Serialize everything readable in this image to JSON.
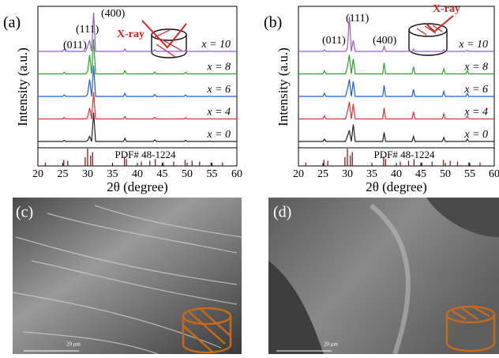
{
  "chart_data": [
    {
      "type": "line",
      "panel_label": "(a)",
      "xlabel": "2θ (degree)",
      "ylabel": "Intensity (a.u.)",
      "xlim": [
        20,
        60
      ],
      "xticks": [
        20,
        25,
        30,
        35,
        40,
        45,
        50,
        55,
        60
      ],
      "x": [
        20,
        25.0,
        25.3,
        25.6,
        29.6,
        30.0,
        30.4,
        30.8,
        31.2,
        31.6,
        37.2,
        37.5,
        37.8,
        43.2,
        43.5,
        43.8,
        49.4,
        49.7,
        50.0,
        54.2,
        54.5,
        54.8,
        60
      ],
      "series": [
        {
          "name": "x = 10",
          "color": "#9b59d0",
          "values": [
            0.02,
            0.02,
            0.08,
            0.02,
            0.02,
            0.15,
            0.3,
            0.02,
            1.0,
            0.02,
            0.02,
            0.08,
            0.02,
            0.02,
            0.06,
            0.02,
            0.02,
            0.05,
            0.02,
            0.02,
            0.03,
            0.02,
            0.02
          ]
        },
        {
          "name": "x = 8",
          "color": "#2ca02c",
          "values": [
            0.02,
            0.02,
            0.06,
            0.02,
            0.02,
            0.08,
            0.5,
            0.02,
            0.9,
            0.02,
            0.02,
            0.1,
            0.02,
            0.02,
            0.07,
            0.02,
            0.02,
            0.06,
            0.02,
            0.02,
            0.03,
            0.02,
            0.02
          ]
        },
        {
          "name": "x = 6",
          "color": "#1f5fd6",
          "values": [
            0.02,
            0.02,
            0.06,
            0.02,
            0.02,
            0.08,
            0.45,
            0.02,
            0.8,
            0.02,
            0.02,
            0.1,
            0.02,
            0.02,
            0.07,
            0.02,
            0.02,
            0.06,
            0.02,
            0.02,
            0.03,
            0.02,
            0.02
          ]
        },
        {
          "name": "x = 4",
          "color": "#e03030",
          "values": [
            0.02,
            0.02,
            0.06,
            0.02,
            0.02,
            0.06,
            0.3,
            0.02,
            0.7,
            0.02,
            0.02,
            0.08,
            0.02,
            0.02,
            0.06,
            0.02,
            0.02,
            0.05,
            0.02,
            0.02,
            0.03,
            0.02,
            0.02
          ]
        },
        {
          "name": "x = 0",
          "color": "#222222",
          "values": [
            0.02,
            0.02,
            0.05,
            0.02,
            0.02,
            0.04,
            0.15,
            0.02,
            0.75,
            0.02,
            0.02,
            0.1,
            0.02,
            0.02,
            0.06,
            0.02,
            0.02,
            0.05,
            0.02,
            0.02,
            0.03,
            0.02,
            0.02
          ]
        }
      ],
      "reference": {
        "name": "PDF# 48-1224",
        "color": "#8b1a1a",
        "x": [
          21.5,
          25.2,
          26.0,
          29.5,
          30.0,
          30.6,
          31.0,
          37.4,
          37.8,
          40.8,
          42.5,
          43.6,
          45.2,
          47.3,
          49.6,
          51.0,
          52.5,
          54.8,
          57.1
        ],
        "values": [
          0.2,
          0.35,
          0.3,
          0.5,
          1.0,
          0.6,
          0.8,
          0.55,
          0.4,
          0.25,
          0.3,
          0.4,
          0.2,
          0.25,
          0.35,
          0.3,
          0.25,
          0.2,
          0.2
        ]
      },
      "annotations": [
        "(400)",
        "(111)",
        "(011)",
        "X-ray"
      ]
    },
    {
      "type": "line",
      "panel_label": "(b)",
      "xlabel": "2θ (degree)",
      "ylabel": "Intensity (a.u.)",
      "xlim": [
        20,
        60
      ],
      "xticks": [
        20,
        25,
        30,
        35,
        40,
        45,
        50,
        55,
        60
      ],
      "x": [
        20,
        25.0,
        25.3,
        25.6,
        29.6,
        30.0,
        30.4,
        30.8,
        31.2,
        31.6,
        37.2,
        37.5,
        37.8,
        43.2,
        43.5,
        43.8,
        49.4,
        49.7,
        50.0,
        54.2,
        54.5,
        54.8,
        60
      ],
      "series": [
        {
          "name": "x = 10",
          "color": "#9b59d0",
          "values": [
            0.02,
            0.02,
            0.06,
            0.02,
            0.02,
            0.1,
            0.9,
            0.02,
            0.3,
            0.02,
            0.02,
            0.15,
            0.02,
            0.02,
            0.08,
            0.02,
            0.02,
            0.06,
            0.02,
            0.02,
            0.04,
            0.02,
            0.02
          ]
        },
        {
          "name": "x = 8",
          "color": "#2ca02c",
          "values": [
            0.02,
            0.02,
            0.1,
            0.02,
            0.02,
            0.2,
            0.5,
            0.02,
            0.4,
            0.02,
            0.02,
            0.3,
            0.02,
            0.02,
            0.2,
            0.02,
            0.02,
            0.15,
            0.02,
            0.02,
            0.1,
            0.02,
            0.02
          ]
        },
        {
          "name": "x = 6",
          "color": "#1f5fd6",
          "values": [
            0.02,
            0.02,
            0.1,
            0.02,
            0.02,
            0.2,
            0.45,
            0.02,
            0.4,
            0.02,
            0.02,
            0.3,
            0.02,
            0.02,
            0.2,
            0.02,
            0.02,
            0.15,
            0.02,
            0.02,
            0.1,
            0.02,
            0.02
          ]
        },
        {
          "name": "x = 4",
          "color": "#e03030",
          "values": [
            0.02,
            0.02,
            0.1,
            0.02,
            0.02,
            0.2,
            0.45,
            0.02,
            0.4,
            0.02,
            0.02,
            0.3,
            0.02,
            0.02,
            0.2,
            0.02,
            0.02,
            0.15,
            0.02,
            0.02,
            0.1,
            0.02,
            0.02
          ]
        },
        {
          "name": "x = 0",
          "color": "#222222",
          "values": [
            0.02,
            0.02,
            0.08,
            0.02,
            0.02,
            0.15,
            0.3,
            0.02,
            0.45,
            0.02,
            0.02,
            0.25,
            0.02,
            0.02,
            0.15,
            0.02,
            0.02,
            0.12,
            0.02,
            0.02,
            0.08,
            0.02,
            0.02
          ]
        }
      ],
      "reference": {
        "name": "PDF# 48-1224",
        "color": "#8b1a1a",
        "x": [
          21.5,
          25.2,
          26.0,
          29.5,
          30.0,
          30.6,
          31.0,
          37.4,
          37.8,
          40.8,
          42.5,
          43.6,
          45.2,
          47.3,
          49.6,
          51.0,
          52.5,
          54.8,
          57.1
        ],
        "values": [
          0.2,
          0.35,
          0.3,
          0.5,
          1.0,
          0.6,
          0.8,
          0.55,
          0.4,
          0.25,
          0.3,
          0.4,
          0.2,
          0.25,
          0.35,
          0.3,
          0.25,
          0.2,
          0.2
        ]
      },
      "annotations": [
        "(111)",
        "(011)",
        "(400)",
        "X-ray"
      ]
    }
  ],
  "images": [
    {
      "label": "(c)",
      "scale_bar": "20 μm"
    },
    {
      "label": "(d)",
      "scale_bar": "20 μm"
    }
  ]
}
